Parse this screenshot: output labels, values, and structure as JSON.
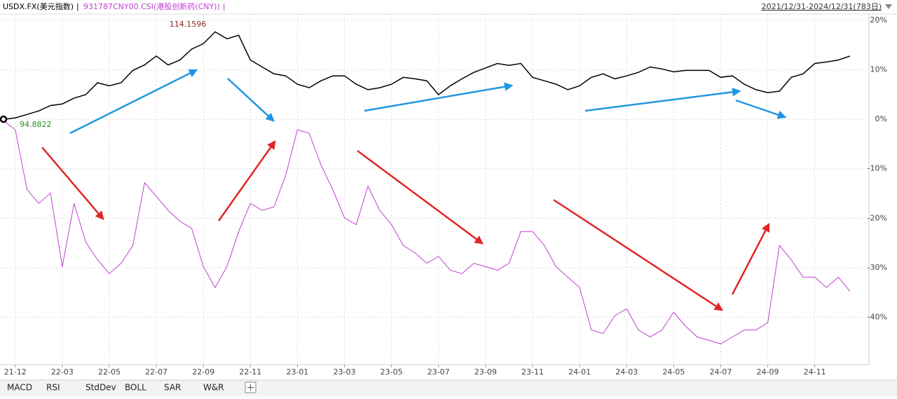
{
  "chart_data": {
    "type": "line",
    "categories": [
      null,
      "21-12",
      null,
      null,
      null,
      "22-03",
      null,
      null,
      null,
      "22-05",
      null,
      null,
      null,
      "22-07",
      null,
      null,
      null,
      "22-09",
      null,
      null,
      null,
      "22-11",
      null,
      null,
      null,
      "23-01",
      null,
      null,
      null,
      "23-03",
      null,
      null,
      null,
      "23-05",
      null,
      null,
      null,
      "23-07",
      null,
      null,
      null,
      "23-09",
      null,
      null,
      null,
      "23-11",
      null,
      null,
      null,
      "24-01",
      null,
      null,
      null,
      "24-03",
      null,
      null,
      null,
      "24-05",
      null,
      null,
      null,
      "24-07",
      null,
      null,
      null,
      "24-09",
      null,
      null,
      null,
      "24-11",
      null,
      null,
      null
    ],
    "series": [
      {
        "name": "USDX.FX(美元指数)",
        "color": "#000000",
        "values": [
          0,
          0.3,
          1,
          1.7,
          2.8,
          3.1,
          4.3,
          5,
          7.4,
          6.8,
          7.4,
          9.9,
          11,
          12.8,
          11,
          12,
          14.2,
          15.3,
          17.7,
          16.3,
          17,
          12,
          10.6,
          9.2,
          8.8,
          7.1,
          6.4,
          7.8,
          8.8,
          8.8,
          7.1,
          6,
          6.4,
          7.1,
          8.5,
          8.2,
          7.8,
          5,
          6.8,
          8.2,
          9.5,
          10.4,
          11.3,
          10.9,
          11.3,
          8.5,
          7.8,
          7.1,
          6,
          6.8,
          8.5,
          9.2,
          8.2,
          8.8,
          9.5,
          10.6,
          10.2,
          9.6,
          9.9,
          9.9,
          9.9,
          8.5,
          8.8,
          7.1,
          6,
          5.4,
          5.7,
          8.5,
          9.2,
          11.3,
          11.6,
          12,
          12.8
        ]
      },
      {
        "name": "931787CNY00.CSI(港股创新药(CNY))",
        "color": "#c040d0",
        "values": [
          -0.3,
          -2.1,
          -14.2,
          -17,
          -14.9,
          -29.8,
          -17,
          -24.8,
          -28.4,
          -31.2,
          -29.1,
          -25.5,
          -12.8,
          -15.6,
          -18.4,
          -20.6,
          -22,
          -29.8,
          -34,
          -29.8,
          -22.7,
          -17,
          -18.4,
          -17.7,
          -11.3,
          -2.1,
          -2.8,
          -9.2,
          -14.2,
          -19.9,
          -21.3,
          -13.5,
          -18.4,
          -21.3,
          -25.5,
          -27,
          -29.1,
          -27.7,
          -30.5,
          -31.2,
          -29.1,
          -29.8,
          -30.5,
          -29.1,
          -22.7,
          -22.7,
          -25.5,
          -29.8,
          -31.9,
          -34,
          -42.6,
          -43.3,
          -39.7,
          -38.3,
          -42.6,
          -44,
          -42.6,
          -39,
          -41.8,
          -44,
          -44.7,
          -45.4,
          -44,
          -42.6,
          -42.6,
          -41.1,
          -25.5,
          -28.4,
          -31.9,
          -31.9,
          -34,
          -31.9,
          -34.8
        ]
      }
    ],
    "ylim": [
      -49.6,
      21.3
    ],
    "yticks": [
      {
        "value": 20,
        "label": "20%"
      },
      {
        "value": 10,
        "label": "10%"
      },
      {
        "value": 0,
        "label": "0%"
      },
      {
        "value": -10,
        "label": "-10%"
      },
      {
        "value": -20,
        "label": "-20%"
      },
      {
        "value": -30,
        "label": "-30%"
      },
      {
        "value": -40,
        "label": "-40%"
      }
    ],
    "grid": true,
    "period": "2021/12/31-2024/12/31(783日)",
    "annotations": [
      "114.1596",
      "94.8822"
    ]
  },
  "tabs": [
    "MACD",
    "RSI",
    "StdDev",
    "BOLL",
    "SAR",
    "W&R"
  ]
}
